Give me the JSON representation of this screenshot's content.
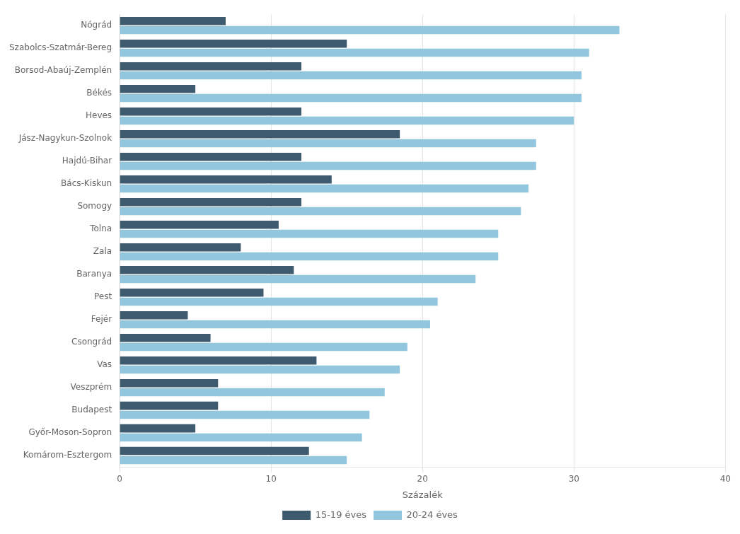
{
  "chart_data": {
    "type": "bar",
    "orientation": "horizontal",
    "categories": [
      "Nógrád",
      "Szabolcs-Szatmár-Bereg",
      "Borsod-Abaúj-Zemplén",
      "Békés",
      "Heves",
      "Jász-Nagykun-Szolnok",
      "Hajdú-Bihar",
      "Bács-Kiskun",
      "Somogy",
      "Tolna",
      "Zala",
      "Baranya",
      "Pest",
      "Fejér",
      "Csongrád",
      "Vas",
      "Veszprém",
      "Budapest",
      "Győr-Moson-Sopron",
      "Komárom-Esztergom"
    ],
    "series": [
      {
        "name": "15-19 éves",
        "color": "#3d5a6e",
        "values": [
          7.0,
          15.0,
          12.0,
          5.0,
          12.0,
          18.5,
          12.0,
          14.0,
          12.0,
          10.5,
          8.0,
          11.5,
          9.5,
          4.5,
          6.0,
          13.0,
          6.5,
          6.5,
          5.0,
          12.5
        ]
      },
      {
        "name": "20-24 éves",
        "color": "#92c5de",
        "values": [
          33.0,
          31.0,
          30.5,
          30.5,
          30.0,
          27.5,
          27.5,
          27.0,
          26.5,
          25.0,
          25.0,
          23.5,
          21.0,
          20.5,
          19.0,
          18.5,
          17.5,
          16.5,
          16.0,
          15.0
        ]
      }
    ],
    "xlabel": "Százalék",
    "xlim": [
      0,
      40
    ],
    "xticks": [
      0,
      10,
      20,
      30,
      40
    ],
    "grid": true,
    "legend": "bottom"
  }
}
